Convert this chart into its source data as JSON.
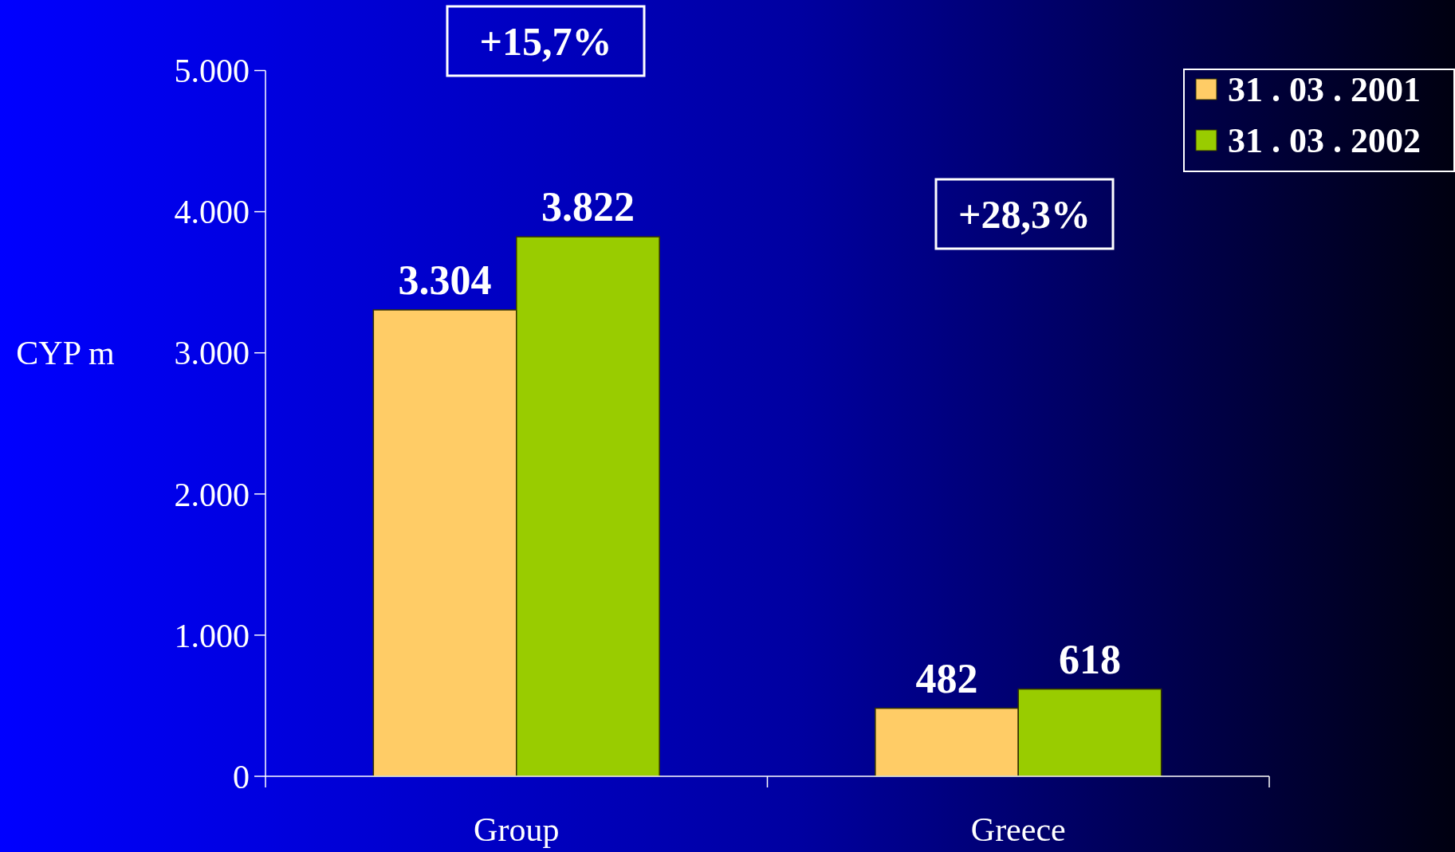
{
  "chart_data": {
    "type": "bar",
    "ylabel": "CYP m",
    "categories": [
      "Group",
      "Greece"
    ],
    "series": [
      {
        "name": "31 . 03 . 2001",
        "color": "#ffcc66",
        "values": [
          3304,
          482
        ],
        "value_labels": [
          "3.304",
          "482"
        ]
      },
      {
        "name": "31 . 03 . 2002",
        "color": "#99cc00",
        "values": [
          3822,
          618
        ],
        "value_labels": [
          "3.822",
          "618"
        ]
      }
    ],
    "ylim": [
      0,
      5000
    ],
    "yticks": [
      {
        "value": 0,
        "label": "0"
      },
      {
        "value": 1000,
        "label": "1.000"
      },
      {
        "value": 2000,
        "label": "2.000"
      },
      {
        "value": 3000,
        "label": "3.000"
      },
      {
        "value": 4000,
        "label": "4.000"
      },
      {
        "value": 5000,
        "label": "5.000"
      }
    ],
    "annotations": [
      "+15,7%",
      "+28,3%"
    ],
    "legend": "top right",
    "grid": false
  }
}
